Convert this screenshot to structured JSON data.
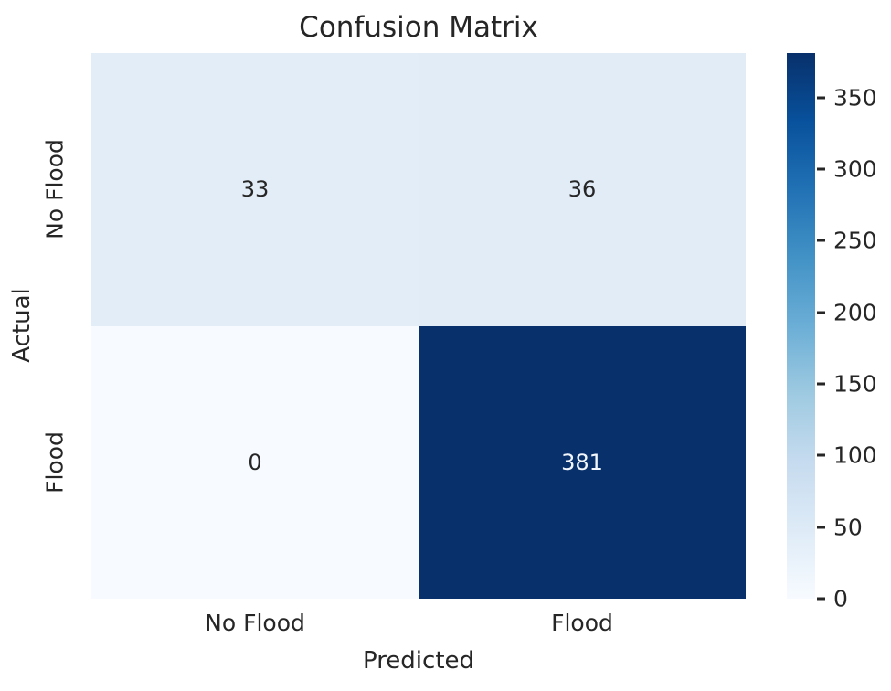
{
  "chart_data": {
    "type": "heatmap",
    "title": "Confusion Matrix",
    "xlabel": "Predicted",
    "ylabel": "Actual",
    "x_categories": [
      "No Flood",
      "Flood"
    ],
    "y_categories": [
      "No Flood",
      "Flood"
    ],
    "matrix": [
      [
        33,
        36
      ],
      [
        0,
        381
      ]
    ],
    "vmin": 0,
    "vmax": 381,
    "colorbar_ticks": [
      0,
      50,
      100,
      150,
      200,
      250,
      300,
      350
    ],
    "legend_position": "right-colorbar",
    "grid": false,
    "cell_colors": [
      [
        "#e3edf7",
        "#e1ecf7"
      ],
      [
        "#f7fbff",
        "#08306b"
      ]
    ],
    "cell_text_colors": [
      [
        "#262626",
        "#262626"
      ],
      [
        "#262626",
        "#f2f7fd"
      ]
    ]
  },
  "colors": {
    "background": "#ffffff",
    "text": "#262626",
    "colorbar_stops": [
      "#f7fbff",
      "#deebf7",
      "#c6dbef",
      "#9ecae1",
      "#6baed6",
      "#4292c6",
      "#2171b5",
      "#08519c",
      "#08306b"
    ]
  }
}
